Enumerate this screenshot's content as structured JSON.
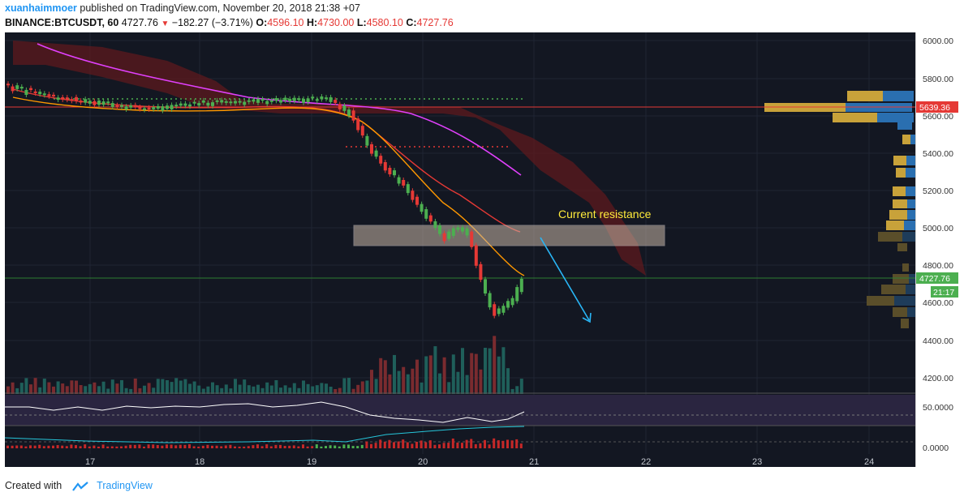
{
  "header": {
    "author": "xuanhaimmoer",
    "published_text": "published on TradingView.com, November 20, 2018 21:38 +07",
    "symbol": "BINANCE:BTCUSDT, 60",
    "last": "4727.76",
    "change": "−182.27 (−3.71%)",
    "o_label": "O:",
    "o_value": "4596.10",
    "h_label": "H:",
    "h_value": "4730.00",
    "l_label": "L:",
    "l_value": "4580.10",
    "c_label": "C:",
    "c_value": "4727.76"
  },
  "price_axis": {
    "ticks": [
      "6000.00",
      "5800.00",
      "5600.00",
      "5400.00",
      "5200.00",
      "5000.00",
      "4800.00",
      "4600.00",
      "4400.00",
      "4200.00"
    ],
    "marker_high": "5639.36",
    "marker_last": "4727.76",
    "countdown": "21:17",
    "rsi_tick": "50.0000",
    "macd_tick": "0.0000"
  },
  "time_axis": {
    "labels": [
      "17",
      "18",
      "19",
      "20",
      "21",
      "22",
      "23",
      "24"
    ]
  },
  "annotation": {
    "text": "Current resistance"
  },
  "footer": {
    "created_with": "Created with",
    "brand": "TradingView"
  },
  "colors": {
    "bg": "#131722",
    "up": "#26a69a",
    "down": "#ef5350",
    "accent": "#2196f3",
    "annotation": "#ffeb3b"
  }
}
